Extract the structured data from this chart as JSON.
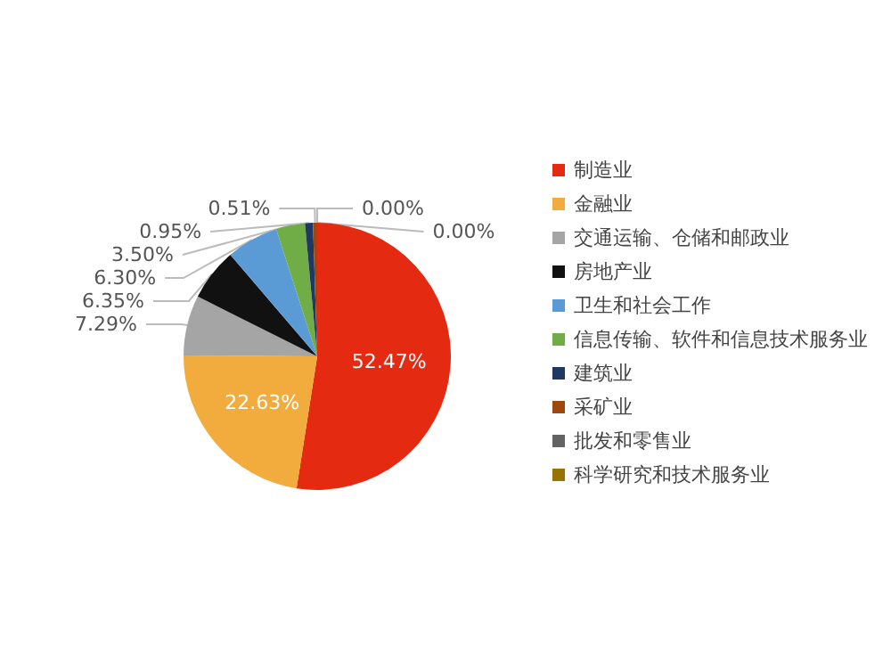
{
  "chart_data": {
    "type": "pie",
    "categories": [
      "制造业",
      "金融业",
      "交通运输、仓储和邮政业",
      "房地产业",
      "卫生和社会工作",
      "信息传输、软件和信息技术服务业",
      "建筑业",
      "采矿业",
      "批发和零售业",
      "科学研究和技术服务业"
    ],
    "values": [
      52.47,
      22.63,
      7.29,
      6.35,
      6.3,
      3.5,
      0.95,
      0.51,
      0.0,
      0.0
    ],
    "value_labels": [
      "52.47%",
      "22.63%",
      "7.29%",
      "6.35%",
      "6.30%",
      "3.50%",
      "0.95%",
      "0.51%",
      "0.00%",
      "0.00%"
    ],
    "colors": [
      "#e52a12",
      "#f2ac3e",
      "#a5a5a5",
      "#111111",
      "#5b9bd5",
      "#70ad47",
      "#1f3864",
      "#9e480e",
      "#636363",
      "#997300"
    ],
    "legend": "right"
  }
}
